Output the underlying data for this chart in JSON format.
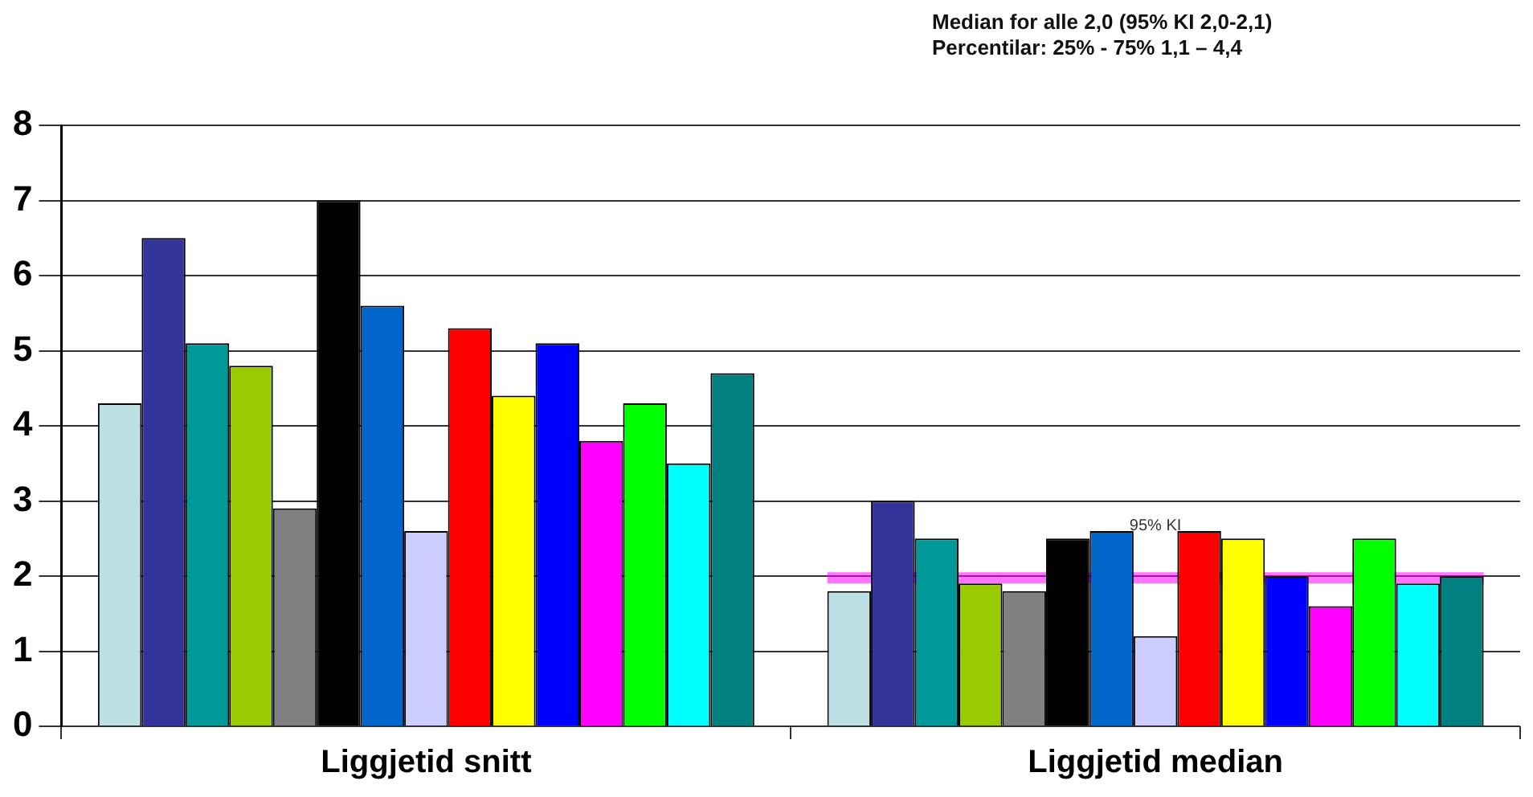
{
  "chart_data": {
    "type": "bar",
    "categories": [
      "Liggjetid snitt",
      "Liggjetid median"
    ],
    "series": [
      {
        "color": "#bde0e4",
        "values": [
          4.3,
          1.8
        ]
      },
      {
        "color": "#333399",
        "values": [
          6.5,
          3.0
        ]
      },
      {
        "color": "#009999",
        "values": [
          5.1,
          2.5
        ]
      },
      {
        "color": "#99cc00",
        "values": [
          4.8,
          1.9
        ]
      },
      {
        "color": "#808080",
        "values": [
          2.9,
          1.8
        ]
      },
      {
        "color": "#000000",
        "values": [
          7.0,
          2.5
        ]
      },
      {
        "color": "#0066cc",
        "values": [
          5.6,
          2.6
        ]
      },
      {
        "color": "#ccccff",
        "values": [
          2.6,
          1.2
        ]
      },
      {
        "color": "#ff0000",
        "values": [
          5.3,
          2.6
        ]
      },
      {
        "color": "#ffff00",
        "values": [
          4.4,
          2.5
        ]
      },
      {
        "color": "#0000ff",
        "values": [
          5.1,
          2.0
        ]
      },
      {
        "color": "#ff00ff",
        "values": [
          3.8,
          1.6
        ]
      },
      {
        "color": "#00ff00",
        "values": [
          4.3,
          2.5
        ]
      },
      {
        "color": "#00ffff",
        "values": [
          3.5,
          1.9
        ]
      },
      {
        "color": "#008080",
        "values": [
          4.7,
          2.0
        ]
      }
    ],
    "ylim": [
      0,
      8
    ],
    "yticks": [
      0,
      1,
      2,
      3,
      4,
      5,
      6,
      7,
      8
    ],
    "grid": "y",
    "legend": false,
    "bands": [
      {
        "axis": "y",
        "from": 1.9,
        "to": 2.05,
        "label": "95% KI",
        "color": "#ff00ff"
      }
    ],
    "annotations": [
      "Median for alle 2,0 (95% KI 2,0-2,1)",
      "Percentilar: 25% - 75%  1,1 – 4,4"
    ]
  }
}
